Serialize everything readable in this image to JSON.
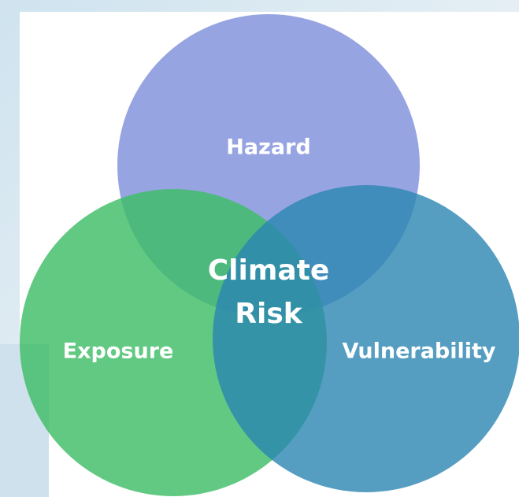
{
  "diagram": {
    "circles": [
      {
        "label": "Hazard"
      },
      {
        "label": "Exposure"
      },
      {
        "label": "Vulnerability"
      }
    ],
    "center_label": [
      "Climate",
      "Risk"
    ]
  }
}
